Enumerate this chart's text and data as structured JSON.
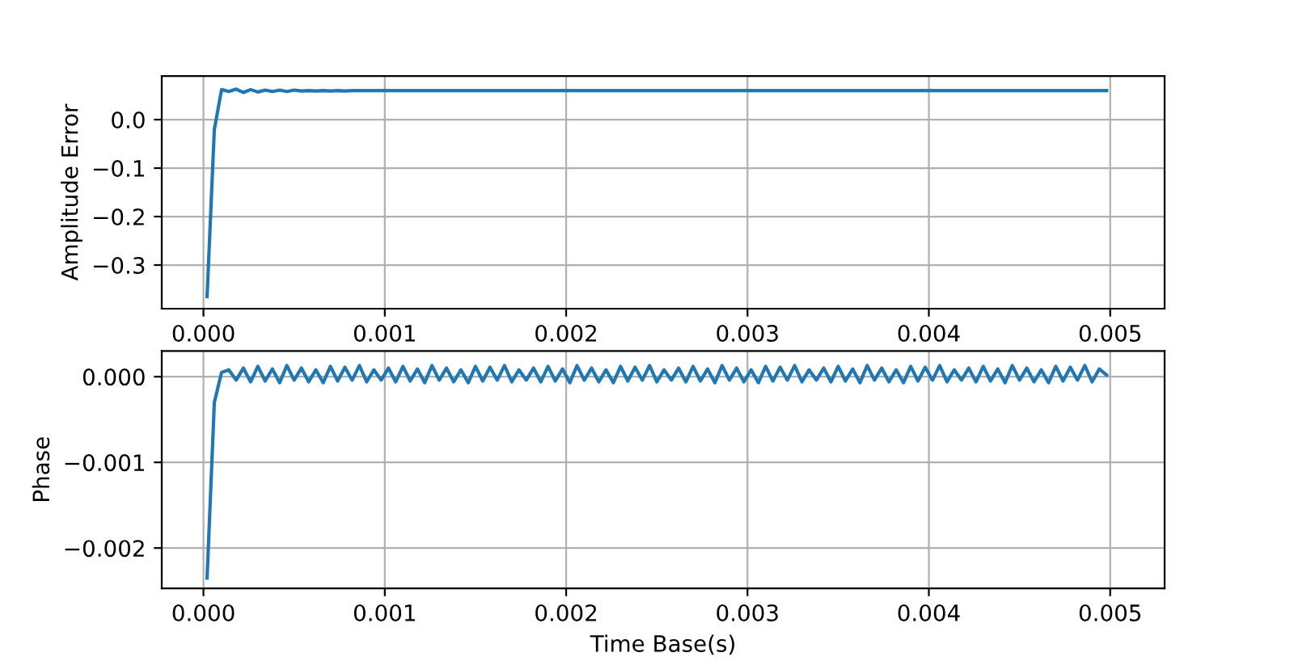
{
  "chart_data": [
    {
      "type": "line",
      "ylabel": "Amplitude Error",
      "grid": true,
      "line_style": "solid",
      "xlim": [
        -0.00023,
        0.0053
      ],
      "ylim": [
        -0.39,
        0.09
      ],
      "xticks": [
        {
          "value": 0.0,
          "label": "0.000"
        },
        {
          "value": 0.001,
          "label": "0.001"
        },
        {
          "value": 0.002,
          "label": "0.002"
        },
        {
          "value": 0.003,
          "label": "0.003"
        },
        {
          "value": 0.004,
          "label": "0.004"
        },
        {
          "value": 0.005,
          "label": "0.005"
        }
      ],
      "yticks": [
        {
          "value": -0.3,
          "label": "−0.3"
        },
        {
          "value": -0.2,
          "label": "−0.2"
        },
        {
          "value": -0.1,
          "label": "−0.1"
        },
        {
          "value": 0.0,
          "label": "0.0"
        }
      ],
      "series": [
        {
          "color": "#1f77b4",
          "x": [
            2e-05,
            6e-05,
            0.0001,
            0.00014,
            0.00018,
            0.00022,
            0.00026,
            0.0003,
            0.00034,
            0.00038,
            0.00042,
            0.00046,
            0.0005,
            0.00054,
            0.00058,
            0.00062,
            0.00066,
            0.0007,
            0.00074,
            0.00078,
            0.00082,
            0.00086,
            0.0009,
            0.00094,
            0.00098,
            0.00102,
            0.00106,
            0.0011,
            0.00114,
            0.00118,
            0.00122,
            0.00126,
            0.0013,
            0.00134,
            0.00138,
            0.00142,
            0.00146,
            0.0015,
            0.00154,
            0.00158,
            0.00162,
            0.00166,
            0.0017,
            0.00174,
            0.00178,
            0.00182,
            0.00186,
            0.0019,
            0.00194,
            0.00198,
            0.00202,
            0.00206,
            0.0021,
            0.00214,
            0.00218,
            0.00222,
            0.00226,
            0.0023,
            0.00234,
            0.00238,
            0.00242,
            0.00246,
            0.0025,
            0.00254,
            0.00258,
            0.00262,
            0.00266,
            0.0027,
            0.00274,
            0.00278,
            0.00282,
            0.00286,
            0.0029,
            0.00294,
            0.00298,
            0.00302,
            0.00306,
            0.0031,
            0.00314,
            0.00318,
            0.00322,
            0.00326,
            0.0033,
            0.00334,
            0.00338,
            0.00342,
            0.00346,
            0.0035,
            0.00354,
            0.00358,
            0.00362,
            0.00366,
            0.0037,
            0.00374,
            0.00378,
            0.00382,
            0.00386,
            0.0039,
            0.00394,
            0.00398,
            0.00402,
            0.00406,
            0.0041,
            0.00414,
            0.00418,
            0.00422,
            0.00426,
            0.0043,
            0.00434,
            0.00438,
            0.00442,
            0.00446,
            0.0045,
            0.00454,
            0.00458,
            0.00462,
            0.00466,
            0.0047,
            0.00474,
            0.00478,
            0.00482,
            0.00486,
            0.0049,
            0.00494,
            0.00498
          ],
          "values": [
            -0.365,
            -0.02,
            0.062,
            0.058,
            0.063,
            0.056,
            0.062,
            0.057,
            0.061,
            0.058,
            0.061,
            0.058,
            0.061,
            0.059,
            0.06,
            0.059,
            0.06,
            0.059,
            0.06,
            0.059,
            0.06,
            0.06,
            0.06,
            0.06,
            0.06,
            0.06,
            0.06,
            0.06,
            0.06,
            0.06,
            0.06,
            0.06,
            0.06,
            0.06,
            0.06,
            0.06,
            0.06,
            0.06,
            0.06,
            0.06,
            0.06,
            0.06,
            0.06,
            0.06,
            0.06,
            0.06,
            0.06,
            0.06,
            0.06,
            0.06,
            0.06,
            0.06,
            0.06,
            0.06,
            0.06,
            0.06,
            0.06,
            0.06,
            0.06,
            0.06,
            0.06,
            0.06,
            0.06,
            0.06,
            0.06,
            0.06,
            0.06,
            0.06,
            0.06,
            0.06,
            0.06,
            0.06,
            0.06,
            0.06,
            0.06,
            0.06,
            0.06,
            0.06,
            0.06,
            0.06,
            0.06,
            0.06,
            0.06,
            0.06,
            0.06,
            0.06,
            0.06,
            0.06,
            0.06,
            0.06,
            0.06,
            0.06,
            0.06,
            0.06,
            0.06,
            0.06,
            0.06,
            0.06,
            0.06,
            0.06,
            0.06,
            0.06,
            0.06,
            0.06,
            0.06,
            0.06,
            0.06,
            0.06,
            0.06,
            0.06,
            0.06,
            0.06,
            0.06,
            0.06,
            0.06,
            0.06,
            0.06,
            0.06,
            0.06,
            0.06,
            0.06,
            0.06,
            0.06,
            0.06,
            0.06
          ]
        }
      ]
    },
    {
      "type": "line",
      "ylabel": "Phase",
      "xlabel": "Time Base(s)",
      "grid": true,
      "line_style": "solid",
      "xlim": [
        -0.00023,
        0.0053
      ],
      "ylim": [
        -0.00247,
        0.0003
      ],
      "xticks": [
        {
          "value": 0.0,
          "label": "0.000"
        },
        {
          "value": 0.001,
          "label": "0.001"
        },
        {
          "value": 0.002,
          "label": "0.002"
        },
        {
          "value": 0.003,
          "label": "0.003"
        },
        {
          "value": 0.004,
          "label": "0.004"
        },
        {
          "value": 0.005,
          "label": "0.005"
        }
      ],
      "yticks": [
        {
          "value": -0.002,
          "label": "−0.002"
        },
        {
          "value": -0.001,
          "label": "−0.001"
        },
        {
          "value": 0.0,
          "label": "0.000"
        }
      ],
      "series": [
        {
          "color": "#1f77b4",
          "x": [
            2e-05,
            6e-05,
            0.0001,
            0.00014,
            0.00018,
            0.00022,
            0.00026,
            0.0003,
            0.00034,
            0.00038,
            0.00042,
            0.00046,
            0.0005,
            0.00054,
            0.00058,
            0.00062,
            0.00066,
            0.0007,
            0.00074,
            0.00078,
            0.00082,
            0.00086,
            0.0009,
            0.00094,
            0.00098,
            0.00102,
            0.00106,
            0.0011,
            0.00114,
            0.00118,
            0.00122,
            0.00126,
            0.0013,
            0.00134,
            0.00138,
            0.00142,
            0.00146,
            0.0015,
            0.00154,
            0.00158,
            0.00162,
            0.00166,
            0.0017,
            0.00174,
            0.00178,
            0.00182,
            0.00186,
            0.0019,
            0.00194,
            0.00198,
            0.00202,
            0.00206,
            0.0021,
            0.00214,
            0.00218,
            0.00222,
            0.00226,
            0.0023,
            0.00234,
            0.00238,
            0.00242,
            0.00246,
            0.0025,
            0.00254,
            0.00258,
            0.00262,
            0.00266,
            0.0027,
            0.00274,
            0.00278,
            0.00282,
            0.00286,
            0.0029,
            0.00294,
            0.00298,
            0.00302,
            0.00306,
            0.0031,
            0.00314,
            0.00318,
            0.00322,
            0.00326,
            0.0033,
            0.00334,
            0.00338,
            0.00342,
            0.00346,
            0.0035,
            0.00354,
            0.00358,
            0.00362,
            0.00366,
            0.0037,
            0.00374,
            0.00378,
            0.00382,
            0.00386,
            0.0039,
            0.00394,
            0.00398,
            0.00402,
            0.00406,
            0.0041,
            0.00414,
            0.00418,
            0.00422,
            0.00426,
            0.0043,
            0.00434,
            0.00438,
            0.00442,
            0.00446,
            0.0045,
            0.00454,
            0.00458,
            0.00462,
            0.00466,
            0.0047,
            0.00474,
            0.00478,
            0.00482,
            0.00486,
            0.0049,
            0.00494,
            0.00498
          ],
          "values": [
            -0.00235,
            -0.0003,
            5e-05,
            8e-05,
            -4e-05,
            0.0001,
            -6e-05,
            0.00012,
            -5e-05,
            9e-05,
            -7e-05,
            0.00013,
            -4e-05,
            0.0001,
            -6e-05,
            8e-05,
            -7e-05,
            0.00012,
            -5e-05,
            0.00011,
            -4e-05,
            0.00013,
            -6e-05,
            8e-05,
            -4e-05,
            0.0001,
            -6e-05,
            0.00012,
            -5e-05,
            9e-05,
            -7e-05,
            0.00013,
            -4e-05,
            0.0001,
            -6e-05,
            8e-05,
            -7e-05,
            0.00012,
            -5e-05,
            0.00011,
            -4e-05,
            0.00013,
            -6e-05,
            8e-05,
            -4e-05,
            0.0001,
            -6e-05,
            0.00012,
            -5e-05,
            9e-05,
            -7e-05,
            0.00013,
            -4e-05,
            0.0001,
            -6e-05,
            8e-05,
            -7e-05,
            0.00012,
            -5e-05,
            0.00011,
            -4e-05,
            0.00013,
            -6e-05,
            8e-05,
            -4e-05,
            0.0001,
            -6e-05,
            0.00012,
            -5e-05,
            9e-05,
            -7e-05,
            0.00013,
            -4e-05,
            0.0001,
            -6e-05,
            8e-05,
            -7e-05,
            0.00012,
            -5e-05,
            0.00011,
            -4e-05,
            0.00013,
            -6e-05,
            8e-05,
            -4e-05,
            0.0001,
            -6e-05,
            0.00012,
            -5e-05,
            9e-05,
            -7e-05,
            0.00013,
            -4e-05,
            0.0001,
            -6e-05,
            8e-05,
            -7e-05,
            0.00012,
            -5e-05,
            0.00011,
            -4e-05,
            0.00013,
            -6e-05,
            8e-05,
            -4e-05,
            0.0001,
            -6e-05,
            0.00012,
            -5e-05,
            9e-05,
            -7e-05,
            0.00013,
            -4e-05,
            0.0001,
            -6e-05,
            8e-05,
            -7e-05,
            0.00012,
            -5e-05,
            0.00011,
            -4e-05,
            0.00013,
            -6e-05,
            9e-05,
            2e-05
          ]
        }
      ]
    }
  ]
}
